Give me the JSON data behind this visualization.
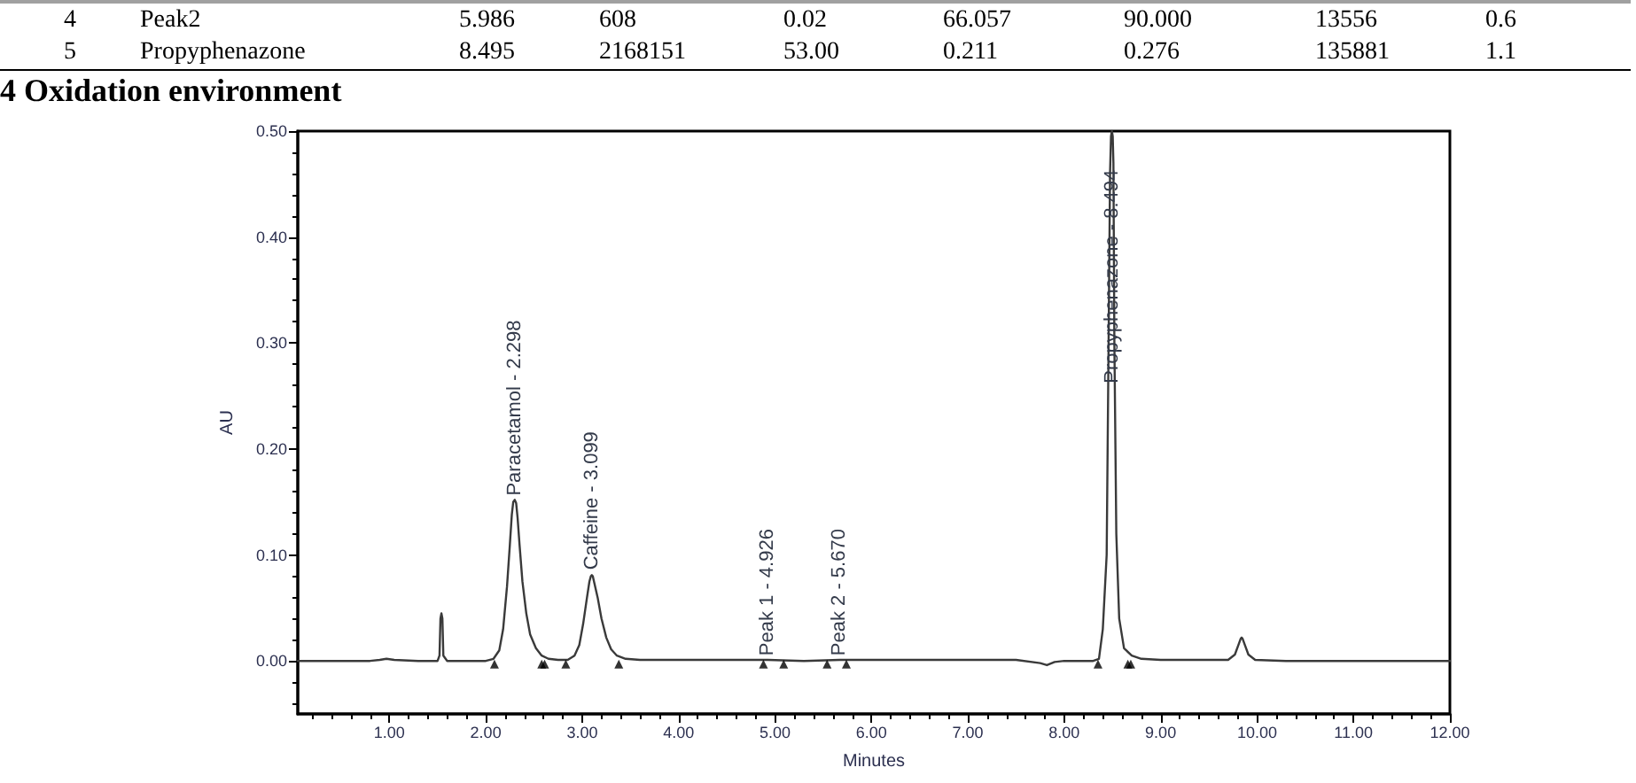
{
  "chart_data": {
    "type": "line",
    "title": "4 Oxidation environment",
    "xlabel": "Minutes",
    "ylabel": "AU",
    "xlim": [
      0.05,
      12
    ],
    "ylim": [
      -0.05,
      0.5
    ],
    "xticks": [
      {
        "value": 0.2,
        "label": null
      },
      {
        "value": 0.4,
        "label": null
      },
      {
        "value": 0.6,
        "label": null
      },
      {
        "value": 0.8,
        "label": null
      },
      {
        "value": 1,
        "label": "1.00"
      },
      {
        "value": 1.2,
        "label": null
      },
      {
        "value": 1.4,
        "label": null
      },
      {
        "value": 1.6,
        "label": null
      },
      {
        "value": 1.8,
        "label": null
      },
      {
        "value": 2,
        "label": "2.00"
      },
      {
        "value": 2.2,
        "label": null
      },
      {
        "value": 2.4,
        "label": null
      },
      {
        "value": 2.6,
        "label": null
      },
      {
        "value": 2.8,
        "label": null
      },
      {
        "value": 3,
        "label": "3.00"
      },
      {
        "value": 3.2,
        "label": null
      },
      {
        "value": 3.4,
        "label": null
      },
      {
        "value": 3.6,
        "label": null
      },
      {
        "value": 3.8,
        "label": null
      },
      {
        "value": 4,
        "label": "4.00"
      },
      {
        "value": 4.2,
        "label": null
      },
      {
        "value": 4.4,
        "label": null
      },
      {
        "value": 4.6,
        "label": null
      },
      {
        "value": 4.8,
        "label": null
      },
      {
        "value": 5,
        "label": "5.00"
      },
      {
        "value": 5.2,
        "label": null
      },
      {
        "value": 5.4,
        "label": null
      },
      {
        "value": 5.6,
        "label": null
      },
      {
        "value": 5.8,
        "label": null
      },
      {
        "value": 6,
        "label": "6.00"
      },
      {
        "value": 6.2,
        "label": null
      },
      {
        "value": 6.4,
        "label": null
      },
      {
        "value": 6.6,
        "label": null
      },
      {
        "value": 6.8,
        "label": null
      },
      {
        "value": 7,
        "label": "7.00"
      },
      {
        "value": 7.2,
        "label": null
      },
      {
        "value": 7.4,
        "label": null
      },
      {
        "value": 7.6,
        "label": null
      },
      {
        "value": 7.8,
        "label": null
      },
      {
        "value": 8,
        "label": "8.00"
      },
      {
        "value": 8.2,
        "label": null
      },
      {
        "value": 8.4,
        "label": null
      },
      {
        "value": 8.6,
        "label": null
      },
      {
        "value": 8.8,
        "label": null
      },
      {
        "value": 9,
        "label": "9.00"
      },
      {
        "value": 9.2,
        "label": null
      },
      {
        "value": 9.4,
        "label": null
      },
      {
        "value": 9.6,
        "label": null
      },
      {
        "value": 9.8,
        "label": null
      },
      {
        "value": 10,
        "label": "10.00"
      },
      {
        "value": 10.2,
        "label": null
      },
      {
        "value": 10.4,
        "label": null
      },
      {
        "value": 10.6,
        "label": null
      },
      {
        "value": 10.8,
        "label": null
      },
      {
        "value": 11,
        "label": "11.00"
      },
      {
        "value": 11.2,
        "label": null
      },
      {
        "value": 11.4,
        "label": null
      },
      {
        "value": 11.6,
        "label": null
      },
      {
        "value": 11.8,
        "label": null
      },
      {
        "value": 12,
        "label": "12.00"
      }
    ],
    "yticks": [
      {
        "value": -0.04,
        "label": null
      },
      {
        "value": -0.02,
        "label": null
      },
      {
        "value": 0,
        "label": "0.00"
      },
      {
        "value": 0.02,
        "label": null
      },
      {
        "value": 0.04,
        "label": null
      },
      {
        "value": 0.06,
        "label": null
      },
      {
        "value": 0.08,
        "label": null
      },
      {
        "value": 0.1,
        "label": "0.10"
      },
      {
        "value": 0.12,
        "label": null
      },
      {
        "value": 0.14,
        "label": null
      },
      {
        "value": 0.16,
        "label": null
      },
      {
        "value": 0.18,
        "label": null
      },
      {
        "value": 0.2,
        "label": "0.20"
      },
      {
        "value": 0.22,
        "label": null
      },
      {
        "value": 0.24,
        "label": null
      },
      {
        "value": 0.26,
        "label": null
      },
      {
        "value": 0.28,
        "label": null
      },
      {
        "value": 0.3,
        "label": "0.30"
      },
      {
        "value": 0.32,
        "label": null
      },
      {
        "value": 0.34,
        "label": null
      },
      {
        "value": 0.36,
        "label": null
      },
      {
        "value": 0.38,
        "label": null
      },
      {
        "value": 0.4,
        "label": "0.40"
      },
      {
        "value": 0.42,
        "label": null
      },
      {
        "value": 0.44,
        "label": null
      },
      {
        "value": 0.46,
        "label": null
      },
      {
        "value": 0.48,
        "label": null
      },
      {
        "value": 0.5,
        "label": "0.50"
      }
    ],
    "grid": false,
    "marker": "none",
    "line_style": "solid",
    "annotations": [
      "4",
      "Peak2",
      "5.986",
      "608",
      "0.02",
      "66.057",
      "90.000",
      "13556",
      "0.6",
      "5",
      "Propyphenazone",
      "8.495",
      "2168151",
      "53.00",
      "0.211",
      "0.276",
      "135881",
      "1.1",
      {
        "text": "Paracetamol - 2.298",
        "x": 2.298,
        "y": 0.156
      },
      {
        "text": "Caffeine - 3.099",
        "x": 3.099,
        "y": 0.086
      },
      {
        "text": "Peak 1 - 4.926",
        "x": 4.926,
        "y": 0.005
      },
      {
        "text": "Peak 2 - 5.670",
        "x": 5.67,
        "y": 0.005
      },
      {
        "text": "Propyphenazone - 8.494",
        "x": 8.494,
        "y": 0.262
      }
    ],
    "series": [
      {
        "type": "line",
        "color": "#3a3a3a",
        "x": [
          0.05,
          0.5,
          0.8,
          0.9,
          0.97,
          1.05,
          1.3,
          1.5,
          1.52,
          1.53,
          1.54,
          1.55,
          1.56,
          1.6,
          1.9,
          2.0,
          2.08,
          2.14,
          2.18,
          2.22,
          2.25,
          2.27,
          2.285,
          2.3,
          2.315,
          2.33,
          2.35,
          2.38,
          2.42,
          2.46,
          2.52,
          2.58,
          2.65,
          2.75,
          2.85,
          2.92,
          2.97,
          3.01,
          3.05,
          3.075,
          3.09,
          3.1,
          3.11,
          3.125,
          3.16,
          3.2,
          3.25,
          3.3,
          3.36,
          3.45,
          3.6,
          4.0,
          4.5,
          4.926,
          5.3,
          5.67,
          6.2,
          6.8,
          7.5,
          7.75,
          7.82,
          7.9,
          8.0,
          8.3,
          8.36,
          8.4,
          8.44,
          8.46,
          8.475,
          8.485,
          8.494,
          8.503,
          8.51,
          8.52,
          8.54,
          8.57,
          8.62,
          8.7,
          8.8,
          9.0,
          9.4,
          9.7,
          9.77,
          9.81,
          9.83,
          9.84,
          9.85,
          9.87,
          9.91,
          9.98,
          10.3,
          11.0,
          11.5,
          12.0
        ],
        "values": [
          0.0,
          0.0,
          0.0,
          0.001,
          0.002,
          0.001,
          0.0,
          0.0,
          0.005,
          0.04,
          0.045,
          0.04,
          0.005,
          0.0,
          0.0,
          0.0,
          0.002,
          0.01,
          0.03,
          0.07,
          0.11,
          0.138,
          0.15,
          0.152,
          0.149,
          0.135,
          0.11,
          0.075,
          0.045,
          0.025,
          0.012,
          0.005,
          0.002,
          0.001,
          0.001,
          0.005,
          0.015,
          0.035,
          0.06,
          0.075,
          0.08,
          0.081,
          0.08,
          0.074,
          0.06,
          0.04,
          0.022,
          0.011,
          0.005,
          0.002,
          0.001,
          0.001,
          0.001,
          0.001,
          0.0,
          0.001,
          0.001,
          0.001,
          0.001,
          -0.002,
          -0.004,
          -0.001,
          0.0,
          0.0,
          0.002,
          0.03,
          0.1,
          0.3,
          0.46,
          0.495,
          0.5,
          0.495,
          0.47,
          0.3,
          0.12,
          0.04,
          0.012,
          0.005,
          0.002,
          0.001,
          0.001,
          0.001,
          0.006,
          0.016,
          0.021,
          0.022,
          0.021,
          0.016,
          0.006,
          0.001,
          0.0,
          0.0,
          0.0,
          0.0
        ]
      },
      {
        "type": "scatter",
        "marker": "triangle",
        "color": "#000000",
        "x": [
          2.09,
          2.58,
          2.61,
          2.83,
          3.38,
          4.88,
          5.09,
          5.54,
          5.74,
          8.35,
          8.66,
          8.69
        ],
        "values": [
          -0.003,
          -0.003,
          -0.003,
          -0.003,
          -0.003,
          -0.003,
          -0.003,
          -0.003,
          -0.003,
          -0.003,
          -0.003,
          -0.003
        ]
      }
    ]
  }
}
